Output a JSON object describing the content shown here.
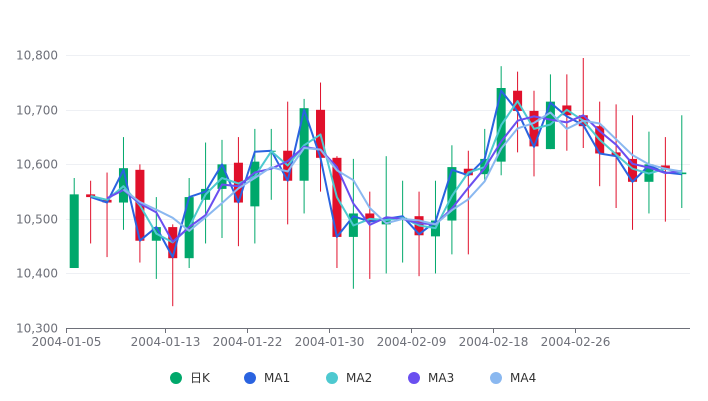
{
  "chart_data": {
    "type": "candlestick",
    "y_axis": {
      "min": 10300,
      "max": 10850,
      "tick_values": [
        10300,
        10400,
        10500,
        10600,
        10700,
        10800
      ],
      "tick_labels": [
        "10,300",
        "10,400",
        "10,500",
        "10,600",
        "10,700",
        "10,800"
      ]
    },
    "x_axis": {
      "labels": [
        {
          "index": 0,
          "label": "2004-01-05"
        },
        {
          "index": 6,
          "label": "2004-01-13"
        },
        {
          "index": 11,
          "label": "2004-01-22"
        },
        {
          "index": 16,
          "label": "2004-01-30"
        },
        {
          "index": 21,
          "label": "2004-02-09"
        },
        {
          "index": 26,
          "label": "2004-02-18"
        },
        {
          "index": 31,
          "label": "2004-02-26"
        }
      ]
    },
    "colors": {
      "up": "#00a86b",
      "down": "#e0102b",
      "MA1": "#2a63e0",
      "MA2": "#4ec9d0",
      "MA3": "#6a4ff0",
      "MA4": "#8ab8f0"
    },
    "candles": [
      {
        "o": 10410,
        "c": 10545,
        "l": 10410,
        "h": 10575
      },
      {
        "o": 10545,
        "c": 10540,
        "l": 10455,
        "h": 10570
      },
      {
        "o": 10535,
        "c": 10530,
        "l": 10430,
        "h": 10585
      },
      {
        "o": 10530,
        "c": 10593,
        "l": 10480,
        "h": 10650
      },
      {
        "o": 10590,
        "c": 10460,
        "l": 10420,
        "h": 10600
      },
      {
        "o": 10460,
        "c": 10485,
        "l": 10390,
        "h": 10540
      },
      {
        "o": 10485,
        "c": 10428,
        "l": 10340,
        "h": 10490
      },
      {
        "o": 10428,
        "c": 10540,
        "l": 10410,
        "h": 10575
      },
      {
        "o": 10535,
        "c": 10555,
        "l": 10455,
        "h": 10640
      },
      {
        "o": 10555,
        "c": 10600,
        "l": 10465,
        "h": 10645
      },
      {
        "o": 10603,
        "c": 10530,
        "l": 10450,
        "h": 10650
      },
      {
        "o": 10523,
        "c": 10605,
        "l": 10455,
        "h": 10665
      },
      {
        "o": 10625,
        "c": 10625,
        "l": 10535,
        "h": 10665
      },
      {
        "o": 10625,
        "c": 10570,
        "l": 10490,
        "h": 10715
      },
      {
        "o": 10570,
        "c": 10703,
        "l": 10510,
        "h": 10720
      },
      {
        "o": 10700,
        "c": 10612,
        "l": 10550,
        "h": 10750
      },
      {
        "o": 10612,
        "c": 10467,
        "l": 10410,
        "h": 10615
      },
      {
        "o": 10467,
        "c": 10510,
        "l": 10372,
        "h": 10610
      },
      {
        "o": 10510,
        "c": 10495,
        "l": 10390,
        "h": 10550
      },
      {
        "o": 10490,
        "c": 10500,
        "l": 10400,
        "h": 10615
      },
      {
        "o": 10500,
        "c": 10502,
        "l": 10420,
        "h": 10570
      },
      {
        "o": 10505,
        "c": 10470,
        "l": 10395,
        "h": 10550
      },
      {
        "o": 10468,
        "c": 10497,
        "l": 10400,
        "h": 10570
      },
      {
        "o": 10497,
        "c": 10595,
        "l": 10435,
        "h": 10635
      },
      {
        "o": 10592,
        "c": 10580,
        "l": 10435,
        "h": 10625
      },
      {
        "o": 10582,
        "c": 10610,
        "l": 10570,
        "h": 10665
      },
      {
        "o": 10605,
        "c": 10740,
        "l": 10580,
        "h": 10780
      },
      {
        "o": 10735,
        "c": 10698,
        "l": 10622,
        "h": 10770
      },
      {
        "o": 10698,
        "c": 10633,
        "l": 10578,
        "h": 10735
      },
      {
        "o": 10628,
        "c": 10715,
        "l": 10628,
        "h": 10765
      },
      {
        "o": 10708,
        "c": 10690,
        "l": 10625,
        "h": 10765
      },
      {
        "o": 10690,
        "c": 10670,
        "l": 10630,
        "h": 10795
      },
      {
        "o": 10670,
        "c": 10620,
        "l": 10560,
        "h": 10715
      },
      {
        "o": 10622,
        "c": 10615,
        "l": 10520,
        "h": 10710
      },
      {
        "o": 10610,
        "c": 10568,
        "l": 10480,
        "h": 10690
      },
      {
        "o": 10568,
        "c": 10600,
        "l": 10510,
        "h": 10660
      },
      {
        "o": 10598,
        "c": 10590,
        "l": 10495,
        "h": 10650
      },
      {
        "o": 10582,
        "c": 10585,
        "l": 10520,
        "h": 10690
      }
    ],
    "series": [
      {
        "name": "MA1",
        "values": [
          null,
          10540,
          10530,
          10590,
          10460,
          10485,
          10430,
          10540,
          10550,
          10600,
          10530,
          10623,
          10625,
          10570,
          10700,
          10612,
          10467,
          10505,
          10495,
          10500,
          10505,
          10472,
          10495,
          10590,
          10580,
          10610,
          10735,
          10697,
          10632,
          10713,
          10688,
          10672,
          10620,
          10615,
          10568,
          10598,
          10585,
          10582
        ]
      },
      {
        "name": "MA2",
        "values": [
          null,
          10542,
          10535,
          10560,
          10525,
          10473,
          10457,
          10485,
          10545,
          10575,
          10565,
          10578,
          10624,
          10598,
          10635,
          10655,
          10540,
          10488,
          10500,
          10498,
          10502,
          10488,
          10483,
          10542,
          10585,
          10595,
          10672,
          10716,
          10665,
          10673,
          10700,
          10680,
          10645,
          10618,
          10592,
          10583,
          10592,
          10584
        ]
      },
      {
        "name": "MA3",
        "values": [
          null,
          null,
          10538,
          10553,
          10528,
          10512,
          10458,
          10485,
          10507,
          10563,
          10560,
          10585,
          10592,
          10606,
          10632,
          10627,
          10595,
          10528,
          10489,
          10503,
          10500,
          10492,
          10490,
          10519,
          10557,
          10593,
          10642,
          10680,
          10688,
          10682,
          10677,
          10690,
          10661,
          10636,
          10601,
          10594,
          10584,
          10588
        ]
      },
      {
        "name": "MA4",
        "values": [
          null,
          null,
          null,
          10554,
          10531,
          10517,
          10502,
          10478,
          10503,
          10529,
          10556,
          10575,
          10595,
          10587,
          10630,
          10627,
          10589,
          10571,
          10520,
          10492,
          10500,
          10497,
          10490,
          10516,
          10536,
          10569,
          10629,
          10666,
          10676,
          10695,
          10665,
          10680,
          10675,
          10646,
          10617,
          10600,
          10592,
          10587
        ]
      }
    ],
    "legend": [
      {
        "label": "日K",
        "color_key": "up"
      },
      {
        "label": "MA1",
        "color_key": "MA1"
      },
      {
        "label": "MA2",
        "color_key": "MA2"
      },
      {
        "label": "MA3",
        "color_key": "MA3"
      },
      {
        "label": "MA4",
        "color_key": "MA4"
      }
    ]
  }
}
